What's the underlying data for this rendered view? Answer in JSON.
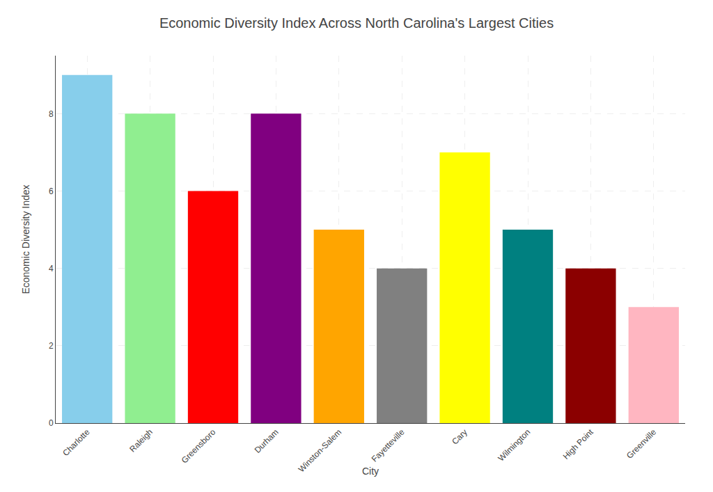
{
  "chart_data": {
    "type": "bar",
    "title": "Economic Diversity Index Across North Carolina's Largest Cities",
    "xlabel": "City",
    "ylabel": "Economic Diversity Index",
    "categories": [
      "Charlotte",
      "Raleigh",
      "Greensboro",
      "Durham",
      "Winston-Salem",
      "Fayetteville",
      "Cary",
      "Wilmington",
      "High Point",
      "Greenville"
    ],
    "values": [
      9,
      8,
      6,
      8,
      5,
      4,
      7,
      5,
      4,
      3
    ],
    "colors": [
      "#87CEEB",
      "#90EE90",
      "#FF0000",
      "#800080",
      "#FFA500",
      "#808080",
      "#FFFF00",
      "#008080",
      "#8B0000",
      "#FFB6C1"
    ],
    "ylim": [
      0,
      9.5
    ],
    "yticks": [
      0,
      2,
      4,
      6,
      8
    ],
    "grid": true
  }
}
